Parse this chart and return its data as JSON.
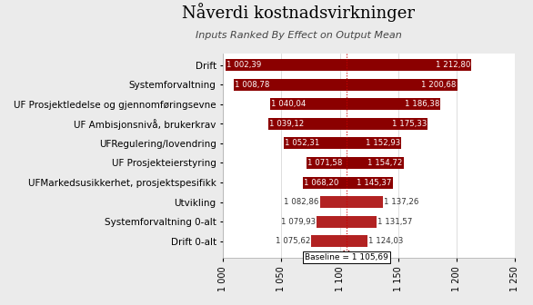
{
  "title": "Nåverdi kostnadsvirkninger",
  "subtitle": "Inputs Ranked By Effect on Output Mean",
  "baseline": 1105.69,
  "categories": [
    "Drift",
    "Systemforvaltning",
    "UF Prosjektledelse og gjennomføringsevne",
    "UF Ambisjonsnivå, brukerkrav",
    "UFRegulering/lovendring",
    "UF Prosjekteierstyring",
    "UFMarkedsusikkerhet, prosjektspesifikk",
    "Utvikling",
    "Systemforvaltning 0-alt",
    "Drift 0-alt"
  ],
  "low_vals": [
    1002.39,
    1008.78,
    1040.04,
    1039.12,
    1052.31,
    1071.58,
    1068.2,
    1082.86,
    1079.93,
    1075.62
  ],
  "high_vals": [
    1212.8,
    1200.68,
    1186.38,
    1175.33,
    1152.93,
    1154.72,
    1145.37,
    1137.26,
    1131.57,
    1124.03
  ],
  "bar_colors": [
    "#8B0000",
    "#8B0000",
    "#8B0000",
    "#8B0000",
    "#8B0000",
    "#8B0000",
    "#8B0000",
    "#B22222",
    "#B22222",
    "#B22222"
  ],
  "label_inside": [
    true,
    true,
    true,
    true,
    true,
    true,
    true,
    false,
    false,
    false
  ],
  "xlim": [
    1000,
    1250
  ],
  "xticks": [
    1000,
    1050,
    1100,
    1150,
    1200,
    1250
  ],
  "background_color": "#EBEBEB",
  "plot_background": "#FFFFFF",
  "title_fontsize": 13,
  "subtitle_fontsize": 8,
  "ylabel_fontsize": 7.5,
  "bar_label_fontsize": 6.2,
  "bar_height": 0.6
}
